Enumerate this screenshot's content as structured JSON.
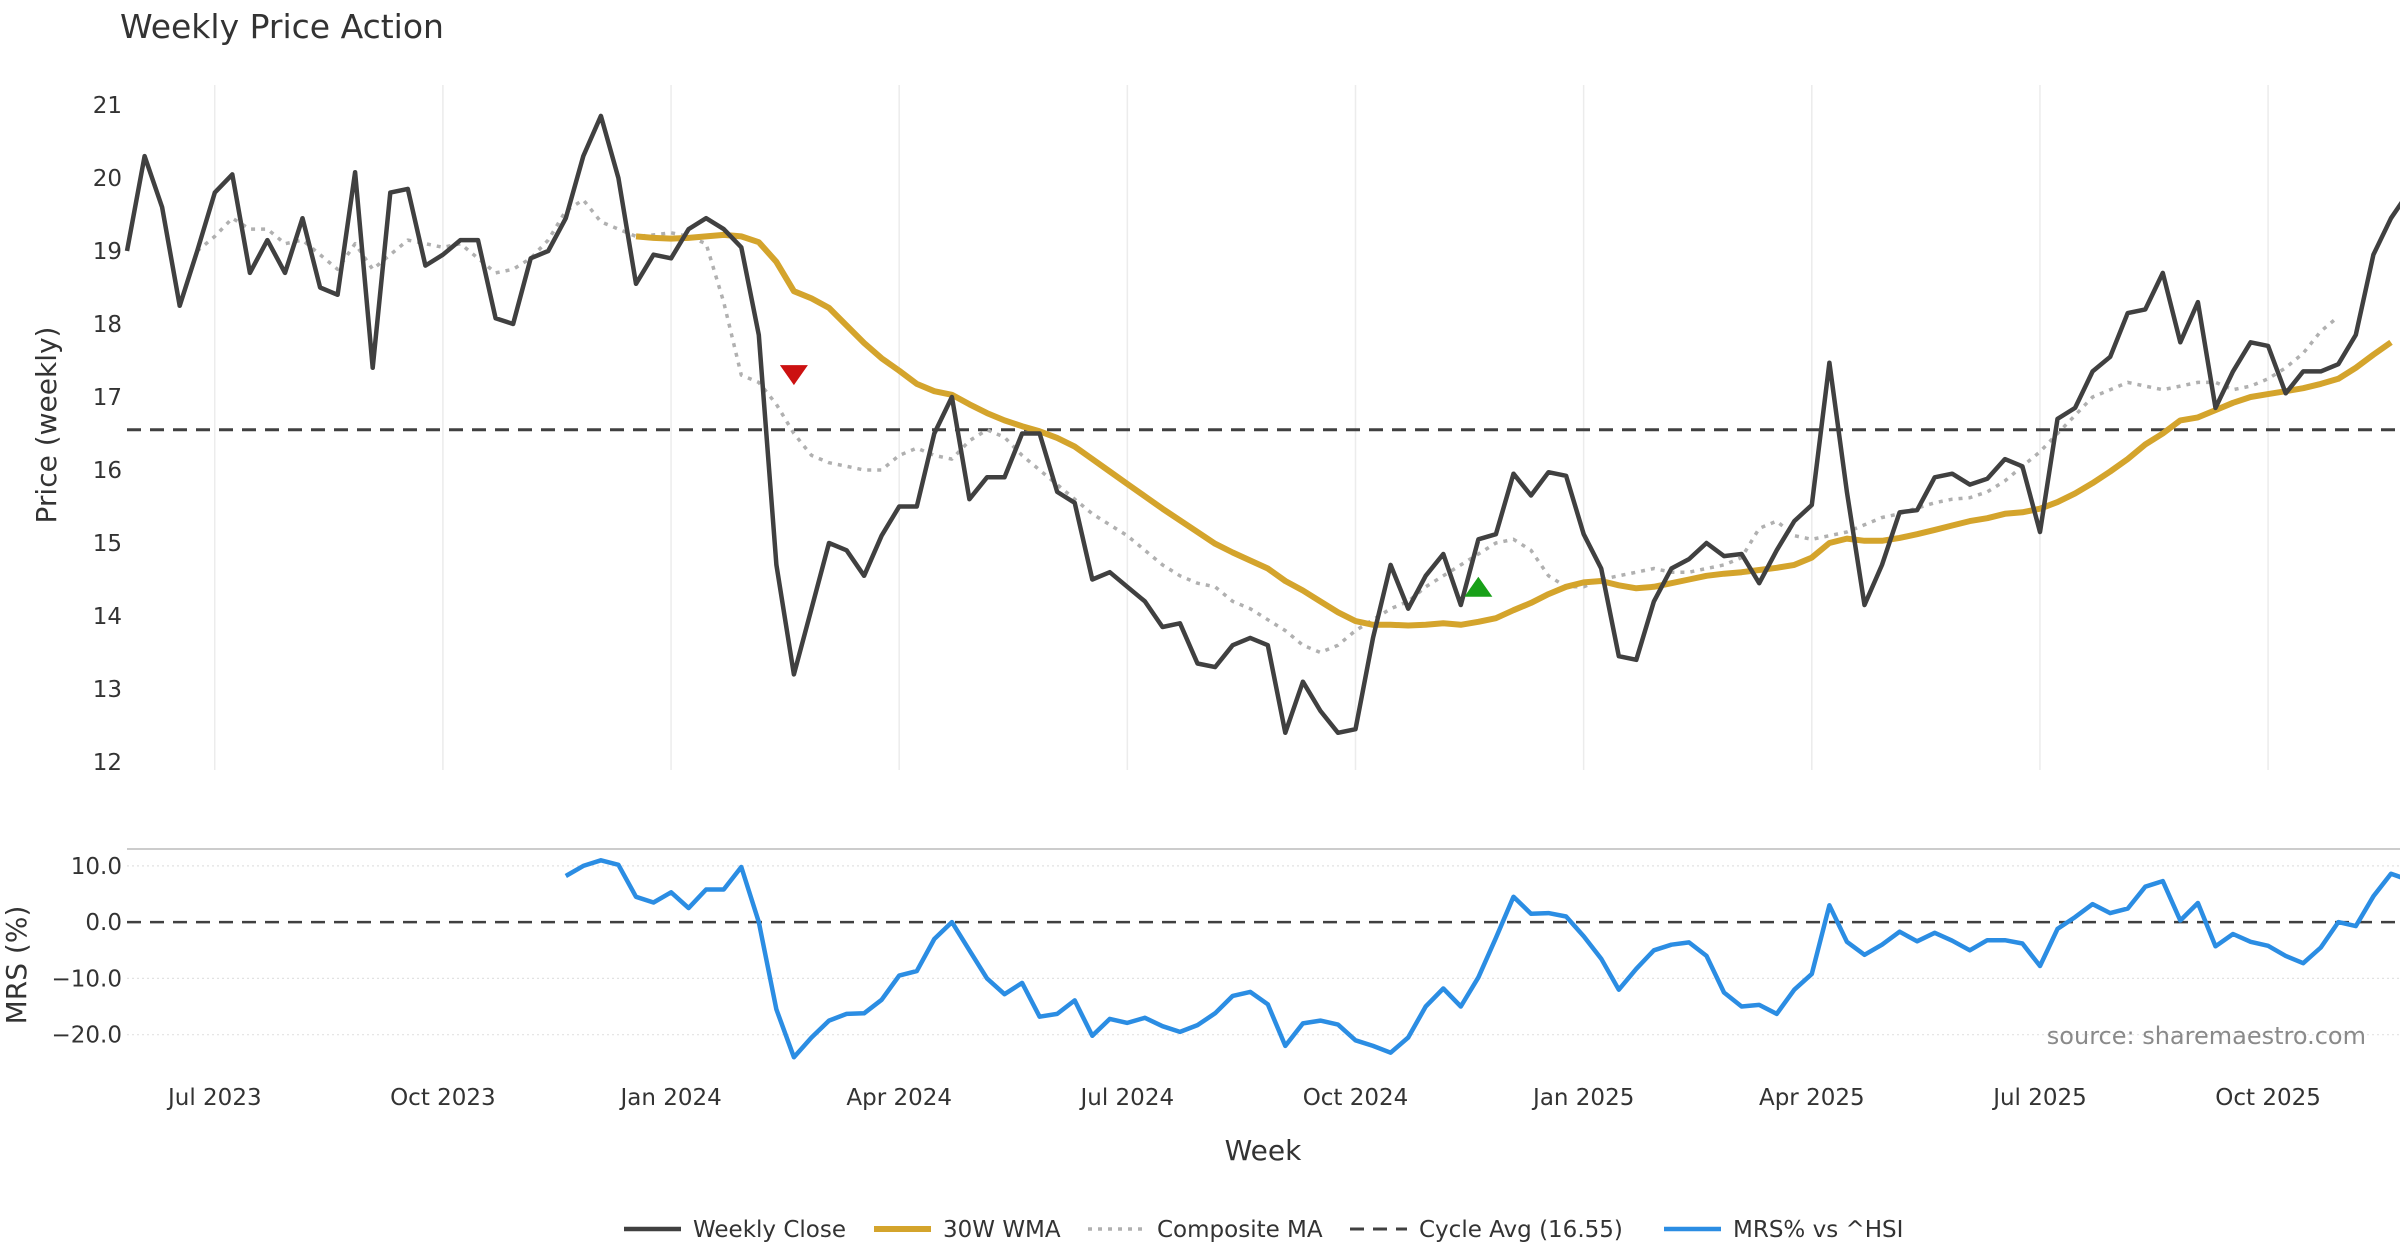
{
  "chart_data": {
    "type": "line",
    "title": "Weekly Price Action",
    "xlabel": "Week",
    "colors": {
      "close": "#404040",
      "wma": "#d4a42c",
      "composite": "#b0b0b0",
      "cycle": "#404040",
      "mrs": "#2b8de3",
      "sell": "#cc1111",
      "buy": "#18a018"
    },
    "x_ticks": [
      "Jul 2023",
      "Oct 2023",
      "Jan 2024",
      "Apr 2024",
      "Jul 2024",
      "Oct 2024",
      "Jan 2025",
      "Apr 2025",
      "Jul 2025",
      "Oct 2025"
    ],
    "x_tick_index": [
      5,
      18,
      31,
      44,
      57,
      70,
      83,
      96,
      109,
      122
    ],
    "price_panel": {
      "ylabel": "Price (weekly)",
      "ylim": [
        12,
        21
      ],
      "yticks": [
        "12",
        "13",
        "14",
        "15",
        "16",
        "17",
        "18",
        "19",
        "20",
        21
      ],
      "cycle_avg": 16.55,
      "series": [
        {
          "name": "Weekly Close",
          "start": 0,
          "values": [
            19.0,
            20.3,
            19.6,
            18.25,
            19.0,
            19.8,
            20.05,
            18.7,
            19.15,
            18.7,
            19.45,
            18.5,
            18.4,
            20.08,
            17.4,
            19.8,
            19.85,
            18.8,
            18.95,
            19.15,
            19.15,
            18.08,
            18.0,
            18.9,
            19.0,
            19.45,
            20.3,
            20.85,
            20.0,
            18.55,
            18.95,
            18.9,
            19.3,
            19.45,
            19.3,
            19.05,
            17.85,
            14.7,
            13.2,
            14.1,
            15.0,
            14.9,
            14.55,
            15.1,
            15.5,
            15.5,
            16.5,
            17.0,
            15.6,
            15.9,
            15.9,
            16.5,
            16.5,
            15.7,
            15.55,
            14.5,
            14.6,
            14.4,
            14.2,
            13.85,
            13.9,
            13.35,
            13.3,
            13.6,
            13.7,
            13.6,
            12.4,
            13.1,
            12.7,
            12.4,
            12.45,
            13.7,
            14.7,
            14.1,
            14.55,
            14.85,
            14.15,
            15.05,
            15.12,
            15.95,
            15.65,
            15.97,
            15.92,
            15.12,
            14.65,
            13.45,
            13.4,
            14.2,
            14.65,
            14.78,
            15.0,
            14.82,
            14.85,
            14.45,
            14.9,
            15.3,
            15.52,
            17.47,
            15.7,
            14.15,
            14.7,
            15.42,
            15.45,
            15.9,
            15.95,
            15.8,
            15.88,
            16.15,
            16.05,
            15.15,
            16.7,
            16.85,
            17.35,
            17.55,
            18.15,
            18.2,
            18.7,
            17.75,
            18.3,
            16.85,
            17.35,
            17.75,
            17.7,
            17.05,
            17.35,
            17.35,
            17.45,
            17.85,
            18.95,
            19.45,
            19.8
          ]
        },
        {
          "name": "30W WMA",
          "start": 29,
          "values": [
            19.2,
            19.18,
            19.17,
            19.18,
            19.2,
            19.22,
            19.2,
            19.12,
            18.85,
            18.45,
            18.35,
            18.22,
            17.98,
            17.74,
            17.53,
            17.36,
            17.18,
            17.08,
            17.03,
            16.9,
            16.78,
            16.68,
            16.6,
            16.53,
            16.44,
            16.32,
            16.15,
            15.98,
            15.81,
            15.64,
            15.47,
            15.31,
            15.15,
            14.99,
            14.87,
            14.76,
            14.65,
            14.48,
            14.35,
            14.2,
            14.05,
            13.93,
            13.88,
            13.88,
            13.87,
            13.88,
            13.9,
            13.88,
            13.92,
            13.97,
            14.08,
            14.18,
            14.3,
            14.4,
            14.46,
            14.48,
            14.42,
            14.38,
            14.4,
            14.45,
            14.5,
            14.55,
            14.58,
            14.6,
            14.63,
            14.66,
            14.7,
            14.8,
            15.0,
            15.06,
            15.03,
            15.03,
            15.07,
            15.12,
            15.18,
            15.24,
            15.3,
            15.34,
            15.4,
            15.42,
            15.47,
            15.56,
            15.68,
            15.82,
            15.98,
            16.15,
            16.35,
            16.5,
            16.68,
            16.72,
            16.82,
            16.92,
            17.0,
            17.04,
            17.08,
            17.12,
            17.18,
            17.25,
            17.4,
            17.58,
            17.75
          ]
        },
        {
          "name": "Composite MA",
          "start": 4,
          "values": [
            19.0,
            19.2,
            19.45,
            19.3,
            19.3,
            19.1,
            19.15,
            18.95,
            18.75,
            19.1,
            18.75,
            18.95,
            19.15,
            19.1,
            19.05,
            19.1,
            18.9,
            18.7,
            18.75,
            18.9,
            19.15,
            19.55,
            19.7,
            19.4,
            19.3,
            19.2,
            19.22,
            19.25,
            19.2,
            19.1,
            18.3,
            17.3,
            17.2,
            16.9,
            16.5,
            16.2,
            16.1,
            16.05,
            16.0,
            16.0,
            16.2,
            16.3,
            16.2,
            16.15,
            16.4,
            16.55,
            16.45,
            16.2,
            16.0,
            15.8,
            15.6,
            15.4,
            15.25,
            15.1,
            14.9,
            14.7,
            14.55,
            14.45,
            14.4,
            14.2,
            14.1,
            13.95,
            13.8,
            13.6,
            13.5,
            13.6,
            13.8,
            13.95,
            14.1,
            14.2,
            14.4,
            14.55,
            14.7,
            14.85,
            15.0,
            15.05,
            14.9,
            14.55,
            14.4,
            14.4,
            14.5,
            14.55,
            14.6,
            14.65,
            14.6,
            14.6,
            14.65,
            14.7,
            14.8,
            15.2,
            15.3,
            15.1,
            15.05,
            15.1,
            15.15,
            15.25,
            15.35,
            15.4,
            15.48,
            15.55,
            15.6,
            15.62,
            15.7,
            15.85,
            16.05,
            16.25,
            16.5,
            16.75,
            17.0,
            17.1,
            17.2,
            17.15,
            17.1,
            17.15,
            17.2,
            17.2,
            17.1,
            17.15,
            17.25,
            17.4,
            17.6,
            17.9,
            18.1
          ]
        }
      ],
      "markers": [
        {
          "type": "sell",
          "index": 38,
          "value": 17.3
        },
        {
          "type": "buy",
          "index": 77,
          "value": 14.4
        }
      ]
    },
    "mrs_panel": {
      "ylabel": "MRS (%)",
      "ylim": [
        -24.5,
        13.0
      ],
      "yticks": [
        "−20.0",
        "−10.0",
        "0.0",
        "10.0"
      ],
      "ytick_values": [
        -20,
        -10,
        0,
        10
      ],
      "series": {
        "name": "MRS% vs ^HSI",
        "start": 25,
        "values": [
          8.2,
          10.0,
          11.0,
          10.2,
          4.5,
          3.5,
          5.3,
          2.5,
          5.8,
          5.8,
          9.8,
          0.0,
          -15.5,
          -24.0,
          -20.5,
          -17.5,
          -16.3,
          -16.2,
          -13.8,
          -9.5,
          -8.7,
          -3.0,
          0.0,
          -5.0,
          -10.0,
          -12.8,
          -10.8,
          -16.8,
          -16.3,
          -13.9,
          -20.2,
          -17.2,
          -17.9,
          -17.0,
          -18.5,
          -19.5,
          -18.3,
          -16.2,
          -13.1,
          -12.4,
          -14.6,
          -22.0,
          -18.0,
          -17.5,
          -18.2,
          -21.0,
          -22.0,
          -23.2,
          -20.5,
          -15.0,
          -11.8,
          -15.0,
          -9.8,
          -2.8,
          4.5,
          1.5,
          1.6,
          1.0,
          -2.5,
          -6.5,
          -12.0,
          -8.3,
          -5.0,
          -4.0,
          -3.6,
          -6.0,
          -12.5,
          -15.0,
          -14.7,
          -16.3,
          -12.0,
          -9.2,
          3.0,
          -3.5,
          -5.8,
          -4.0,
          -1.7,
          -3.4,
          -1.9,
          -3.3,
          -5.0,
          -3.2,
          -3.2,
          -3.8,
          -7.8,
          -1.2,
          0.9,
          3.2,
          1.6,
          2.4,
          6.3,
          7.3,
          0.3,
          3.4,
          -4.3,
          -2.1,
          -3.5,
          -4.2,
          -6.0,
          -7.3,
          -4.5,
          0.0,
          -0.7,
          4.6,
          8.6,
          7.5
        ]
      },
      "zero_line": 0
    },
    "legend": [
      "Weekly Close",
      "30W WMA",
      "Composite MA",
      "Cycle Avg (16.55)",
      "MRS% vs ^HSI"
    ],
    "source": "source: sharemaestro.com"
  }
}
